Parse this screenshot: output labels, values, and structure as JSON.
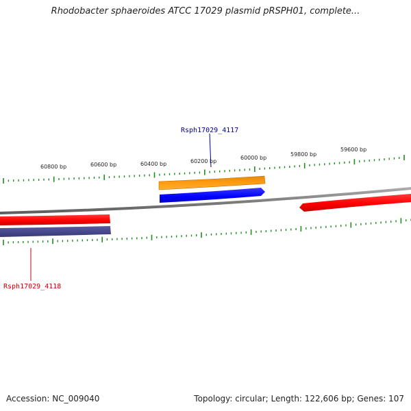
{
  "title": "Rhodobacter sphaeroides ATCC 17029 plasmid pRSPH01, complete...",
  "footer": {
    "accession": "Accession: NC_009040",
    "summary": "Topology: circular; Length: 122,606 bp; Genes: 107"
  },
  "ticks": {
    "color": "#228B22",
    "labels": [
      "60800 bp",
      "60600 bp",
      "60400 bp",
      "60200 bp",
      "60000 bp",
      "59800 bp",
      "59600 bp"
    ]
  },
  "backbone_color": "#808080",
  "genes": [
    {
      "name": "Rsph17029_4117",
      "color": "#1a1aff",
      "label_color": "#00008b",
      "labeled": true
    },
    {
      "name": "Rsph17029_4118",
      "color": "#ff1010",
      "label_color": "#cc0000",
      "labeled": true
    },
    {
      "name": "orange-feature",
      "color": "#ff9900",
      "labeled": false
    },
    {
      "name": "navy-feature",
      "color": "#48488a",
      "labeled": false
    },
    {
      "name": "red-feature-right",
      "color": "#ff1010",
      "labeled": false
    }
  ]
}
